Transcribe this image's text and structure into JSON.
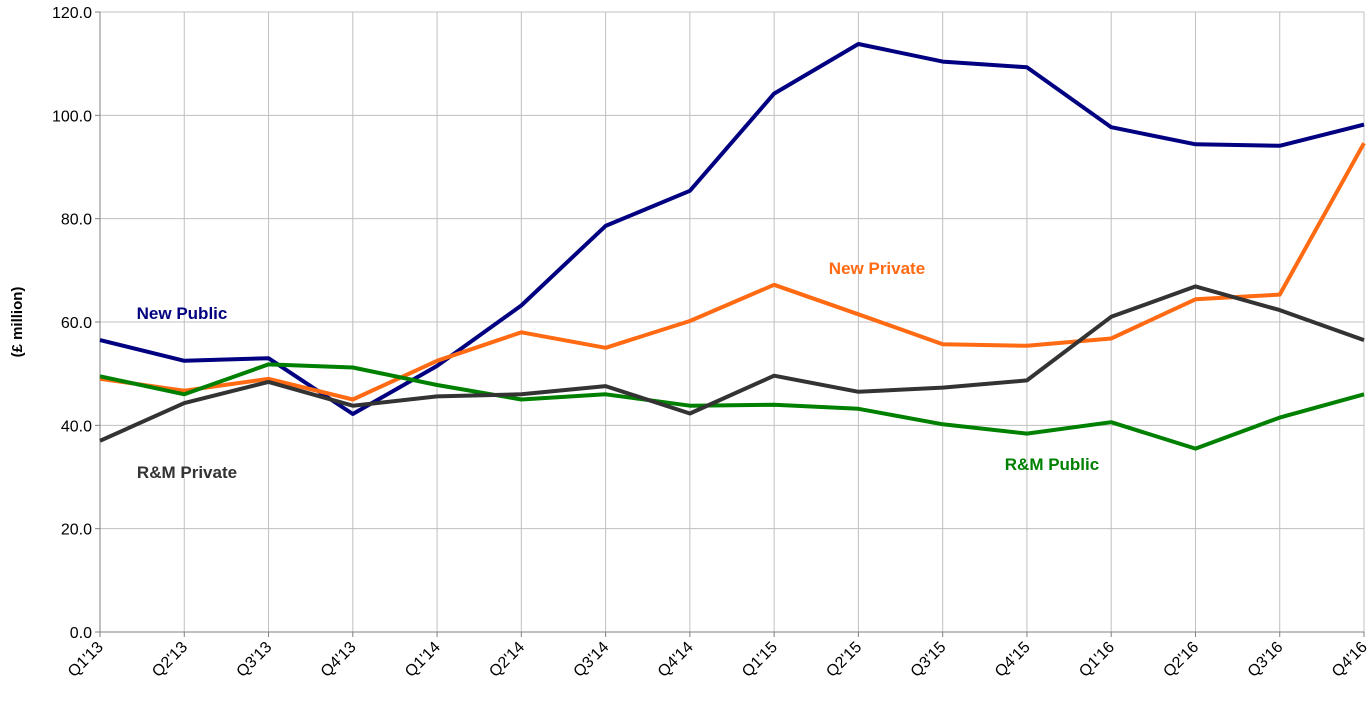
{
  "chart_data": {
    "type": "line",
    "y_label": "(£ million)",
    "categories": [
      "Q1'13",
      "Q2'13",
      "Q3'13",
      "Q4'13",
      "Q1'14",
      "Q2'14",
      "Q3'14",
      "Q4'14",
      "Q1'15",
      "Q2'15",
      "Q3'15",
      "Q4'15",
      "Q1'16",
      "Q2'16",
      "Q3'16",
      "Q4'16"
    ],
    "series": [
      {
        "name": "New Public",
        "color": "#000080",
        "values": [
          56.5,
          52.5,
          53.0,
          42.2,
          51.5,
          63.2,
          78.6,
          85.4,
          104.2,
          113.8,
          110.4,
          109.3,
          97.7,
          94.4,
          94.1,
          98.2
        ]
      },
      {
        "name": "New Private",
        "color": "#ff6a13",
        "values": [
          49.0,
          46.7,
          49.0,
          45.0,
          52.5,
          58.0,
          55.0,
          60.2,
          67.2,
          61.5,
          55.7,
          55.4,
          56.8,
          64.4,
          65.3,
          94.6
        ]
      },
      {
        "name": "R&M Public",
        "color": "#008000",
        "values": [
          49.5,
          46.0,
          51.8,
          51.2,
          47.8,
          45.0,
          46.0,
          43.8,
          44.0,
          43.2,
          40.2,
          38.4,
          40.6,
          35.5,
          41.5,
          46.0
        ]
      },
      {
        "name": "R&M Private",
        "color": "#333333",
        "values": [
          37.0,
          44.3,
          48.4,
          43.8,
          45.6,
          46.0,
          47.6,
          42.3,
          49.6,
          46.5,
          47.3,
          48.7,
          61.0,
          66.9,
          62.3,
          56.5
        ]
      }
    ],
    "ylim": [
      0,
      120
    ],
    "yticks": [
      {
        "value": 0,
        "label": "0.0"
      },
      {
        "value": 20,
        "label": "20.0"
      },
      {
        "value": 40,
        "label": "40.0"
      },
      {
        "value": 60,
        "label": "60.0"
      },
      {
        "value": 80,
        "label": "80.0"
      },
      {
        "value": 100,
        "label": "100.0"
      },
      {
        "value": 120,
        "label": "120.0"
      }
    ],
    "grid": true
  }
}
